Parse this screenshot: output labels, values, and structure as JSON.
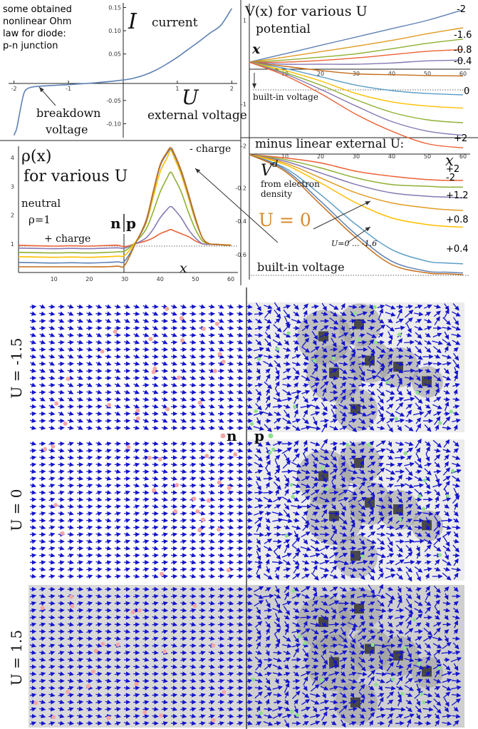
{
  "colors": {
    "blue": "#5E81B5",
    "orange": "#E19C24",
    "green": "#8FB032",
    "red": "#EB6235",
    "purple": "#8778B3",
    "brown": "#C56E1A",
    "cyan": "#5D9EC7",
    "yellow": "#FFBF00",
    "arrow": "#1414CC",
    "pink_dot": "#F3A6A6",
    "green_dot": "#8EE08E",
    "u0_label": "#D98B2B"
  },
  "iv_panel": {
    "note": [
      "some obtained",
      "nonlinear Ohm",
      "law for diode:",
      "p-n junction"
    ],
    "current_symbol": "I",
    "current_label": "current",
    "voltage_symbol": "U",
    "voltage_label": "external voltage",
    "breakdown_label": [
      "breakdown",
      "voltage"
    ]
  },
  "potential_panel": {
    "title": "V(x) for various U",
    "subtitle": "potential",
    "x_symbol": "x",
    "builtin_label": "built-in voltage",
    "curve_labels": [
      "-2",
      "-1.6",
      "-0.8",
      "-0.4",
      "0",
      "+2"
    ]
  },
  "density_panel": {
    "title_rho": "ρ(x)",
    "title_for": "for various U",
    "neutral": "neutral",
    "rho_one": "ρ=1",
    "plus_charge": "+ charge",
    "minus_charge": "- charge",
    "n_label": "n",
    "p_label": "p",
    "x_symbol": "x"
  },
  "vd_panel": {
    "title": "minus linear external U:",
    "vd_symbol": "V",
    "vd_sup": "d",
    "from_electron": [
      "from electron",
      "density"
    ],
    "x_symbol": "x",
    "curve_labels": [
      "+2",
      "-2",
      "+1.2",
      "+0.8",
      "+0.4"
    ],
    "u_range": "U=0 ... -1.6",
    "builtin_label": "built-in voltage",
    "u0_label": "U = 0"
  },
  "field_panels": {
    "labels": [
      "U = -1.5",
      "U = 0",
      "U = 1.5"
    ],
    "n_label": "n",
    "p_label": "p"
  },
  "chart_data": [
    {
      "type": "line",
      "title": "",
      "xlabel": "U external voltage",
      "ylabel": "I current",
      "xlim": [
        -2.1,
        2.1
      ],
      "ylim": [
        -0.13,
        0.16
      ],
      "x_ticks": [
        "-2",
        "-1",
        "1",
        "2"
      ],
      "y_ticks": [
        "0.15",
        "0.10",
        "0.05",
        "-0.05",
        "-0.10"
      ],
      "series": [
        {
          "x": [
            -2,
            -1.95,
            -1.9,
            -1.85,
            -1.8,
            -1.7,
            -1.5,
            -1.0,
            -0.5,
            0,
            0.2,
            0.4,
            0.6,
            0.8,
            1.0,
            1.2,
            1.4,
            1.6,
            1.8,
            2.0
          ],
          "y": [
            -0.125,
            -0.11,
            -0.08,
            -0.05,
            -0.03,
            -0.022,
            -0.019,
            -0.016,
            -0.012,
            -0.006,
            -0.002,
            0.005,
            0.015,
            0.028,
            0.043,
            0.06,
            0.077,
            0.095,
            0.112,
            0.148
          ]
        }
      ]
    },
    {
      "type": "line",
      "title": "V(x) for various U",
      "xlim": [
        0,
        62
      ],
      "ylim": [
        -2.3,
        1.4
      ],
      "x_ticks": [
        "10",
        "20",
        "30",
        "40",
        "50",
        "60"
      ],
      "y_ticks": [
        "1",
        "-1",
        "-2"
      ],
      "x": [
        0,
        10,
        20,
        30,
        40,
        50,
        60
      ],
      "series": [
        {
          "name": "-2",
          "values": [
            0,
            0.2,
            0.4,
            0.6,
            0.8,
            1.0,
            1.25
          ]
        },
        {
          "name": "-1.6",
          "values": [
            0,
            0.12,
            0.25,
            0.38,
            0.52,
            0.68,
            0.82
          ]
        },
        {
          "name": "-0.8",
          "values": [
            0,
            0.05,
            0.12,
            0.2,
            0.32,
            0.45,
            0.55
          ]
        },
        {
          "name": "-0.4",
          "values": [
            0,
            0.0,
            0.04,
            0.1,
            0.18,
            0.26,
            0.3
          ]
        },
        {
          "name": "",
          "values": [
            0,
            -0.05,
            -0.05,
            -0.05,
            -0.02,
            0.03,
            0.05
          ]
        },
        {
          "name": "0",
          "values": [
            0,
            -0.1,
            -0.2,
            -0.28,
            -0.3,
            -0.32,
            -0.33
          ]
        },
        {
          "name": "",
          "values": [
            0,
            -0.15,
            -0.35,
            -0.55,
            -0.68,
            -0.75,
            -0.78
          ]
        },
        {
          "name": "",
          "values": [
            0,
            -0.2,
            -0.45,
            -0.75,
            -0.95,
            -1.05,
            -1.1
          ]
        },
        {
          "name": "",
          "values": [
            0,
            -0.25,
            -0.55,
            -0.9,
            -1.2,
            -1.38,
            -1.45
          ]
        },
        {
          "name": "",
          "values": [
            0,
            -0.28,
            -0.65,
            -1.05,
            -1.42,
            -1.65,
            -1.75
          ]
        },
        {
          "name": "+2",
          "values": [
            0,
            -0.32,
            -0.75,
            -1.25,
            -1.65,
            -1.95,
            -2.05
          ]
        }
      ]
    },
    {
      "type": "line",
      "title": "ρ(x) for various U",
      "xlim": [
        0,
        62
      ],
      "ylim": [
        0,
        4.4
      ],
      "x_ticks": [
        "10",
        "20",
        "30",
        "40",
        "50",
        "60"
      ],
      "y_ticks": [
        "1",
        "2",
        "3",
        "4"
      ],
      "x": [
        0,
        5,
        10,
        15,
        20,
        25,
        28,
        30,
        33,
        36,
        38,
        40,
        42,
        43,
        44,
        46,
        48,
        50,
        52,
        54,
        56,
        58,
        60
      ],
      "series": [
        {
          "name": "",
          "values": [
            0.95,
            0.93,
            0.92,
            0.93,
            0.92,
            0.94,
            0.95,
            0.9,
            1.0,
            1.1,
            1.2,
            1.35,
            1.45,
            1.5,
            1.45,
            1.35,
            1.25,
            1.1,
            1.0,
            0.98,
            0.97,
            0.96,
            0.95
          ]
        },
        {
          "name": "",
          "values": [
            0.85,
            0.84,
            0.83,
            0.84,
            0.83,
            0.85,
            0.86,
            0.85,
            1.0,
            1.2,
            1.5,
            1.9,
            2.2,
            2.3,
            2.2,
            1.9,
            1.5,
            1.2,
            1.0,
            0.98,
            0.97,
            0.96,
            0.95
          ]
        },
        {
          "name": "",
          "values": [
            0.7,
            0.69,
            0.68,
            0.69,
            0.68,
            0.7,
            0.72,
            0.75,
            1.05,
            1.5,
            2.1,
            2.8,
            3.3,
            3.5,
            3.3,
            2.8,
            2.1,
            1.5,
            1.1,
            1.0,
            0.98,
            0.97,
            0.96
          ]
        },
        {
          "name": "",
          "values": [
            0.55,
            0.54,
            0.53,
            0.54,
            0.53,
            0.55,
            0.57,
            0.6,
            1.05,
            1.7,
            2.6,
            3.5,
            4.0,
            4.25,
            4.0,
            3.4,
            2.6,
            1.8,
            1.2,
            1.0,
            0.98,
            0.97,
            0.96
          ]
        },
        {
          "name": "",
          "values": [
            0.35,
            0.34,
            0.33,
            0.34,
            0.33,
            0.35,
            0.37,
            0.4,
            1.0,
            1.75,
            2.75,
            3.7,
            4.15,
            4.3,
            4.1,
            3.5,
            2.7,
            1.85,
            1.2,
            1.0,
            0.98,
            0.96,
            0.95
          ]
        },
        {
          "name": "",
          "values": [
            0.2,
            0.2,
            0.2,
            0.2,
            0.2,
            0.2,
            0.22,
            0.25,
            1.0,
            1.8,
            2.8,
            3.75,
            4.2,
            4.35,
            4.15,
            3.55,
            2.75,
            1.9,
            1.2,
            1.0,
            0.98,
            0.96,
            0.95
          ]
        }
      ]
    },
    {
      "type": "line",
      "title": "minus linear external U:",
      "xlim": [
        0,
        62
      ],
      "ylim": [
        -0.75,
        0.05
      ],
      "x_ticks": [
        "10",
        "20",
        "30",
        "40",
        "50",
        "60"
      ],
      "y_ticks": [
        "-0.2",
        "-0.4",
        "-0.6"
      ],
      "x": [
        0,
        10,
        20,
        30,
        40,
        50,
        55,
        60
      ],
      "series": [
        {
          "name": "+2",
          "values": [
            0,
            -0.02,
            -0.05,
            -0.1,
            -0.13,
            -0.15,
            -0.155,
            -0.155
          ]
        },
        {
          "name": "-2",
          "values": [
            0,
            -0.03,
            -0.08,
            -0.14,
            -0.18,
            -0.19,
            -0.195,
            -0.195
          ]
        },
        {
          "name": "+1.2",
          "values": [
            0,
            -0.04,
            -0.11,
            -0.18,
            -0.23,
            -0.25,
            -0.255,
            -0.26
          ]
        },
        {
          "name": "",
          "values": [
            0,
            -0.05,
            -0.14,
            -0.23,
            -0.29,
            -0.32,
            -0.33,
            -0.335
          ]
        },
        {
          "name": "+0.8",
          "values": [
            0,
            -0.06,
            -0.17,
            -0.29,
            -0.38,
            -0.42,
            -0.43,
            -0.435
          ]
        },
        {
          "name": "+0.4",
          "values": [
            0,
            -0.08,
            -0.24,
            -0.42,
            -0.57,
            -0.64,
            -0.65,
            -0.655
          ]
        },
        {
          "name": "",
          "values": [
            0,
            -0.09,
            -0.28,
            -0.48,
            -0.64,
            -0.7,
            -0.705,
            -0.71
          ]
        },
        {
          "name": "",
          "values": [
            0,
            -0.1,
            -0.3,
            -0.5,
            -0.66,
            -0.71,
            -0.715,
            -0.72
          ]
        }
      ]
    }
  ]
}
